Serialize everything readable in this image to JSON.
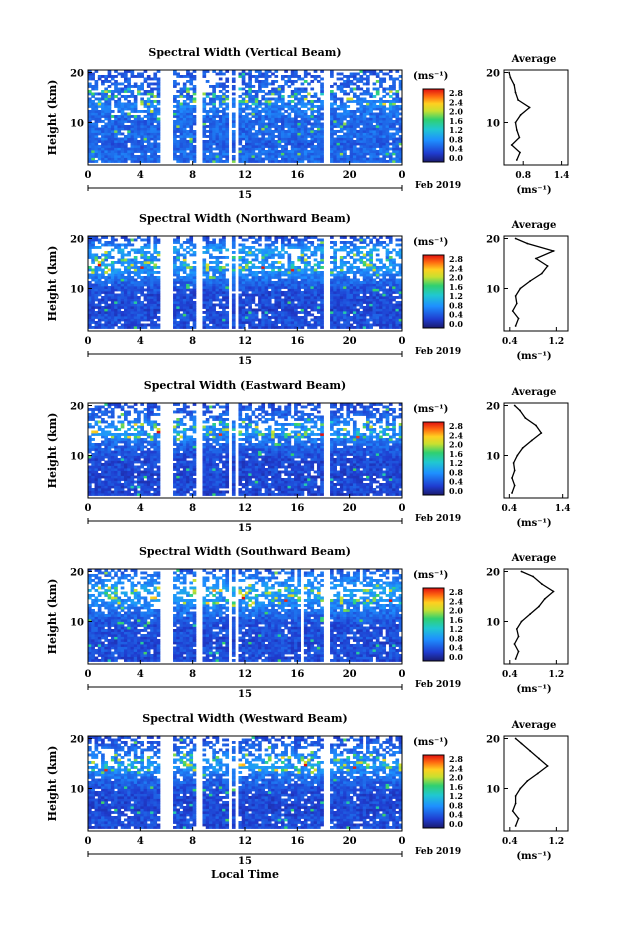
{
  "figure": {
    "date_label": "Feb 2019",
    "day_label": "15",
    "xlabel": "Local Time",
    "ylabel": "Height (km)",
    "colorbar_unit": "(ms⁻¹)",
    "colorbar_ticks": [
      "0.0",
      "0.4",
      "0.8",
      "1.2",
      "1.6",
      "2.0",
      "2.4",
      "2.8"
    ],
    "x_ticks": [
      "0",
      "4",
      "8",
      "12",
      "16",
      "20",
      "0"
    ],
    "y_ticks": [
      "10",
      "20"
    ],
    "avg_title": "Average",
    "avg_xlabel": "(ms⁻¹)"
  },
  "chart_data": [
    {
      "type": "heatmap",
      "title": "Spectral Width (Vertical Beam)",
      "beam": "vertical",
      "xlabel": "",
      "ylabel": "Height (km)",
      "xlim": [
        0,
        24
      ],
      "ylim": [
        1.5,
        20.5
      ],
      "zlim": [
        0.0,
        3.0
      ],
      "data_gaps_hours": [
        [
          5.6,
          6.5
        ],
        [
          8.3,
          8.7
        ],
        [
          10.8,
          11.0
        ],
        [
          11.3,
          11.6
        ],
        [
          18.0,
          18.4
        ]
      ],
      "profile": {
        "title": "Average",
        "xlim": [
          0.5,
          1.5
        ],
        "x_ticks": [
          "0.8",
          "1.4"
        ],
        "heights_km": [
          2.5,
          4,
          5.5,
          7,
          8.5,
          10,
          11.5,
          13,
          14.5,
          16,
          17.5,
          19,
          20
        ],
        "values": [
          0.7,
          0.75,
          0.62,
          0.74,
          0.7,
          0.68,
          0.76,
          0.9,
          0.72,
          0.68,
          0.66,
          0.6,
          0.58
        ]
      }
    },
    {
      "type": "heatmap",
      "title": "Spectral Width (Northward Beam)",
      "beam": "northward",
      "xlabel": "",
      "ylabel": "Height (km)",
      "xlim": [
        0,
        24
      ],
      "ylim": [
        1.5,
        20.5
      ],
      "zlim": [
        0.0,
        3.0
      ],
      "data_gaps_hours": [
        [
          5.6,
          6.5
        ],
        [
          8.3,
          8.7
        ],
        [
          10.8,
          11.0
        ],
        [
          11.3,
          11.6
        ],
        [
          18.0,
          18.4
        ]
      ],
      "profile": {
        "title": "Average",
        "xlim": [
          0.3,
          1.4
        ],
        "x_ticks": [
          "0.4",
          "1.2"
        ],
        "heights_km": [
          2.5,
          4,
          5.5,
          7,
          8.5,
          10,
          11.5,
          13,
          14.5,
          16,
          17.5,
          19,
          20
        ],
        "values": [
          0.5,
          0.55,
          0.45,
          0.52,
          0.5,
          0.58,
          0.75,
          0.95,
          1.05,
          0.85,
          1.15,
          0.7,
          0.5
        ]
      }
    },
    {
      "type": "heatmap",
      "title": "Spectral Width (Eastward Beam)",
      "beam": "eastward",
      "xlabel": "",
      "ylabel": "Height (km)",
      "xlim": [
        0,
        24
      ],
      "ylim": [
        1.5,
        20.5
      ],
      "zlim": [
        0.0,
        3.0
      ],
      "data_gaps_hours": [
        [
          5.6,
          6.5
        ],
        [
          8.3,
          8.7
        ],
        [
          10.8,
          11.0
        ],
        [
          11.3,
          11.6
        ],
        [
          18.0,
          18.4
        ]
      ],
      "profile": {
        "title": "Average",
        "xlim": [
          0.3,
          1.5
        ],
        "x_ticks": [
          "0.4",
          "1.4"
        ],
        "heights_km": [
          2.5,
          4,
          5.5,
          7,
          8.5,
          10,
          11.5,
          13,
          14.5,
          16,
          17.5,
          19,
          20
        ],
        "values": [
          0.45,
          0.5,
          0.45,
          0.5,
          0.48,
          0.55,
          0.65,
          0.82,
          1.0,
          0.9,
          0.7,
          0.6,
          0.5
        ]
      }
    },
    {
      "type": "heatmap",
      "title": "Spectral Width (Southward Beam)",
      "beam": "southward",
      "xlabel": "",
      "ylabel": "Height (km)",
      "xlim": [
        0,
        24
      ],
      "ylim": [
        1.5,
        20.5
      ],
      "zlim": [
        0.0,
        3.0
      ],
      "data_gaps_hours": [
        [
          5.6,
          6.5
        ],
        [
          8.3,
          8.7
        ],
        [
          10.8,
          11.0
        ],
        [
          11.3,
          11.6
        ],
        [
          16.2,
          16.5
        ],
        [
          18.0,
          18.4
        ]
      ],
      "profile": {
        "title": "Average",
        "xlim": [
          0.3,
          1.4
        ],
        "x_ticks": [
          "0.4",
          "1.2"
        ],
        "heights_km": [
          2.5,
          4,
          5.5,
          7,
          8.5,
          10,
          11.5,
          13,
          14.5,
          16,
          17.5,
          19,
          20
        ],
        "values": [
          0.5,
          0.55,
          0.48,
          0.55,
          0.52,
          0.6,
          0.75,
          0.9,
          1.0,
          1.15,
          0.95,
          0.8,
          0.6
        ]
      }
    },
    {
      "type": "heatmap",
      "title": "Spectral Width (Westward Beam)",
      "beam": "westward",
      "xlabel": "Local Time",
      "ylabel": "Height (km)",
      "xlim": [
        0,
        24
      ],
      "ylim": [
        1.5,
        20.5
      ],
      "zlim": [
        0.0,
        3.0
      ],
      "data_gaps_hours": [
        [
          5.6,
          6.5
        ],
        [
          8.3,
          8.7
        ],
        [
          10.8,
          11.0
        ],
        [
          11.3,
          11.6
        ],
        [
          18.0,
          18.4
        ]
      ],
      "profile": {
        "title": "Average",
        "xlim": [
          0.3,
          1.4
        ],
        "x_ticks": [
          "0.4",
          "1.2"
        ],
        "heights_km": [
          2.5,
          4,
          5.5,
          7,
          8.5,
          10,
          11.5,
          13,
          14.5,
          16,
          17.5,
          19,
          20
        ],
        "values": [
          0.5,
          0.55,
          0.45,
          0.5,
          0.5,
          0.58,
          0.7,
          0.88,
          1.05,
          0.9,
          0.75,
          0.6,
          0.5
        ]
      }
    }
  ]
}
